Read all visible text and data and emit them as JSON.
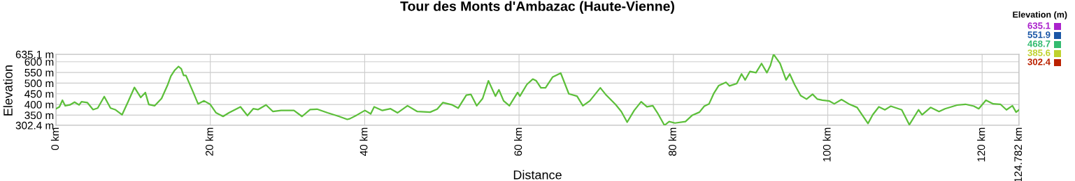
{
  "chart_data": {
    "type": "line",
    "title": "Tour des Monts d'Ambazac (Haute-Vienne)",
    "xlabel": "Distance",
    "ylabel": "Elevation",
    "clabel": "Elevation (m)",
    "clim": [
      302.4,
      635.1
    ],
    "cticks": [
      {
        "value": 635.1,
        "label": "635.1"
      },
      {
        "value": 551.9,
        "label": "551.9"
      },
      {
        "value": 468.7,
        "label": "468.7"
      },
      {
        "value": 385.6,
        "label": "385.6"
      },
      {
        "value": 302.4,
        "label": "302.4"
      }
    ],
    "xlim": [
      0,
      124.782
    ],
    "ylim": [
      302.4,
      635.1
    ],
    "xticks": [
      {
        "value": 0,
        "label": "0 km"
      },
      {
        "value": 20,
        "label": "20 km"
      },
      {
        "value": 40,
        "label": "40 km"
      },
      {
        "value": 60,
        "label": "60 km"
      },
      {
        "value": 80,
        "label": "80 km"
      },
      {
        "value": 100,
        "label": "100 km"
      },
      {
        "value": 120,
        "label": "120 km"
      },
      {
        "value": 124.782,
        "label": "124.782 km"
      }
    ],
    "yticks": [
      {
        "value": 302.4,
        "label": "302.4 m"
      },
      {
        "value": 350,
        "label": "350 m"
      },
      {
        "value": 400,
        "label": "400 m"
      },
      {
        "value": 450,
        "label": "450 m"
      },
      {
        "value": 500,
        "label": "500 m"
      },
      {
        "value": 550,
        "label": "550 m"
      },
      {
        "value": 600,
        "label": "600 m"
      },
      {
        "value": 635.1,
        "label": "635.1 m"
      }
    ],
    "grid": true,
    "marker": "none",
    "line_style": "solid",
    "series": [
      {
        "color": "#5cbf3a",
        "x": [
          0,
          0.45,
          0.84,
          1.2,
          1.8,
          2.41,
          3.01,
          3.31,
          4.06,
          4.81,
          5.41,
          6.26,
          7.07,
          7.67,
          8.57,
          9.32,
          10.17,
          10.98,
          11.58,
          12.03,
          12.78,
          13.68,
          14.44,
          14.89,
          15.4,
          15.88,
          16.24,
          16.54,
          16.84,
          17.74,
          18.41,
          19.19,
          20,
          20.75,
          21.65,
          22.41,
          23.91,
          24.81,
          25.56,
          26.17,
          27.22,
          28.12,
          29.17,
          30.83,
          31.88,
          32.93,
          33.83,
          35.19,
          36.69,
          37.74,
          38.06,
          38.97,
          40.03,
          40.78,
          41.23,
          42.29,
          43.35,
          44.25,
          45.55,
          46.82,
          48.48,
          49.39,
          50.14,
          51.35,
          52.11,
          53.17,
          53.77,
          54.52,
          55.28,
          56.03,
          56.94,
          57.39,
          58,
          58.75,
          59.81,
          60.11,
          61.02,
          61.78,
          62.23,
          62.83,
          63.43,
          64.34,
          65.4,
          66.45,
          67.51,
          68.27,
          69.17,
          70.53,
          71.29,
          72.5,
          73.25,
          74.01,
          74.92,
          75.82,
          76.57,
          77.33,
          77.93,
          78.84,
          79.45,
          80.2,
          81.56,
          82.46,
          83.37,
          84,
          84.62,
          85.25,
          85.86,
          86.81,
          87.27,
          88.21,
          88.83,
          89.3,
          89.92,
          90.7,
          91.42,
          92.11,
          92.57,
          92.98,
          93.82,
          94.6,
          95.07,
          95.7,
          96.48,
          97.25,
          98.03,
          98.66,
          99.29,
          100.22,
          100.84,
          101.78,
          102.71,
          103.8,
          105.21,
          105.83,
          106.62,
          107.4,
          108.17,
          109.58,
          110.57,
          111.76,
          112.22,
          113.32,
          114.41,
          115.19,
          116.75,
          117.84,
          118.93,
          119.56,
          120.49,
          121.43,
          122.37,
          123.15,
          123.92,
          124.4,
          124.782
        ],
        "values": [
          380,
          389,
          420,
          394,
          398,
          411,
          398,
          413,
          409,
          376,
          383,
          437,
          383,
          376,
          352,
          411,
          480,
          433,
          456,
          400,
          394,
          428,
          489,
          533,
          561,
          578,
          567,
          536,
          536,
          461,
          403,
          417,
          400,
          361,
          344,
          361,
          389,
          348,
          380,
          376,
          398,
          367,
          372,
          372,
          344,
          376,
          378,
          361,
          344,
          330,
          333,
          350,
          372,
          356,
          389,
          372,
          380,
          361,
          394,
          367,
          364,
          378,
          409,
          398,
          383,
          444,
          447,
          394,
          428,
          511,
          439,
          469,
          417,
          394,
          456,
          439,
          494,
          519,
          511,
          478,
          478,
          528,
          547,
          450,
          439,
          394,
          417,
          478,
          444,
          400,
          367,
          317,
          372,
          413,
          389,
          394,
          361,
          302.4,
          320,
          313,
          320,
          350,
          364,
          392,
          403,
          453,
          488,
          504,
          487,
          498,
          543,
          515,
          555,
          549,
          592,
          549,
          583,
          635.1,
          592,
          515,
          543,
          493,
          442,
          425,
          448,
          425,
          420,
          416,
          403,
          423,
          403,
          386,
          311,
          352,
          389,
          375,
          392,
          375,
          305,
          375,
          352,
          386,
          367,
          380,
          397,
          401,
          392,
          380,
          420,
          403,
          401,
          375,
          394,
          364,
          375
        ]
      }
    ]
  }
}
